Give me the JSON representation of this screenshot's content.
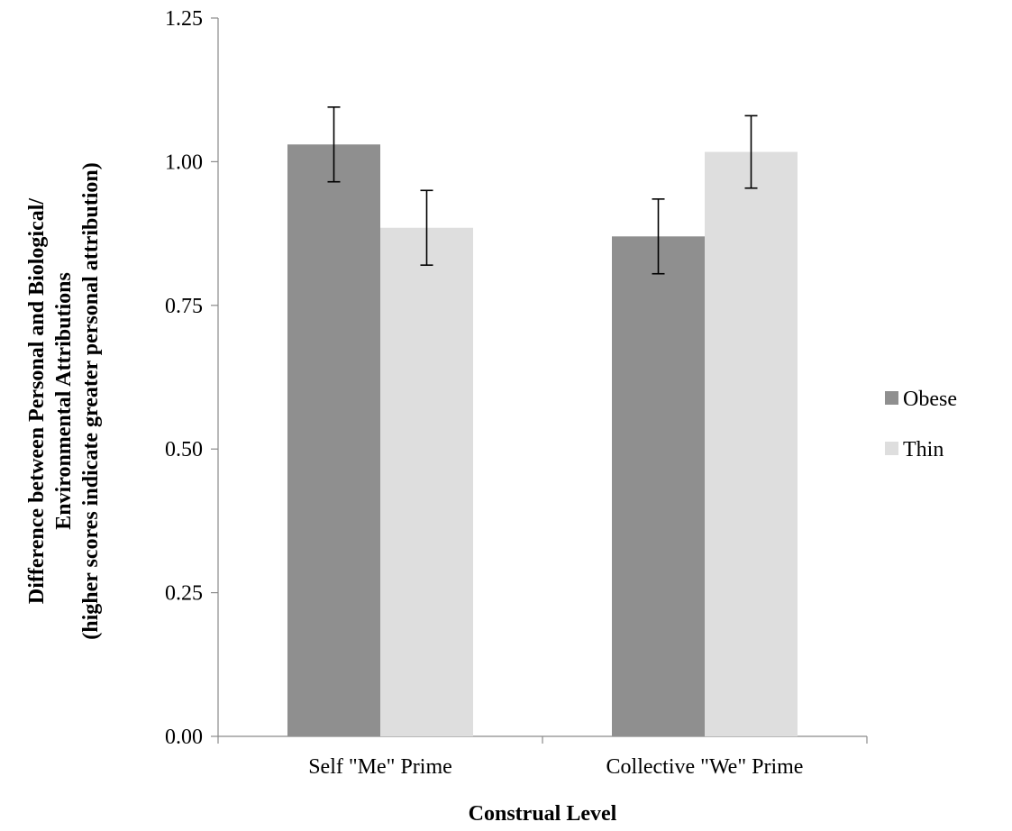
{
  "chart_data": {
    "type": "bar",
    "categories": [
      "Self \"Me\" Prime",
      "Collective \"We\" Prime"
    ],
    "series": [
      {
        "name": "Obese",
        "values": [
          1.03,
          0.87
        ],
        "errors": [
          0.065,
          0.065
        ],
        "color": "#8f8f8f"
      },
      {
        "name": "Thin",
        "values": [
          0.885,
          1.017
        ],
        "errors": [
          0.065,
          0.063
        ],
        "color": "#dedede"
      }
    ],
    "title": "",
    "xlabel": "Construal Level",
    "ylabel_lines": [
      "Difference between Personal and Biological/",
      "Environmental Attributions",
      "(higher scores indicate greater personal attribution)"
    ],
    "ylim": [
      0,
      1.25
    ],
    "yticks": [
      "0.00",
      "0.25",
      "0.50",
      "0.75",
      "1.00",
      "1.25"
    ],
    "grid": false,
    "legend_position": "right"
  }
}
